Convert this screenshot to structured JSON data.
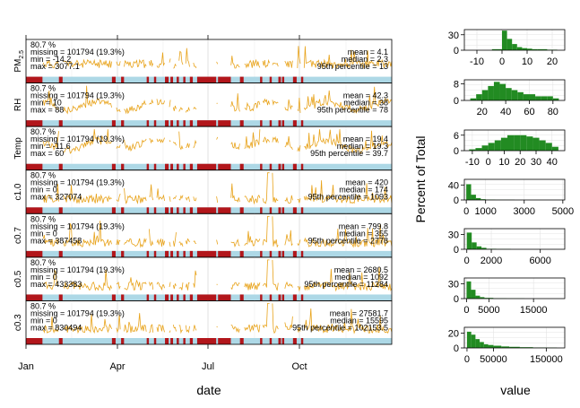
{
  "panels": [
    {
      "label": "PM2.5",
      "label_main": "PM",
      "label_sub": "2.5",
      "pct": "80.7 %",
      "missing": "missing = 101794 (19.3%)",
      "min": "min = -14.2",
      "max": "max = 3077.1",
      "mean": "mean = 4.1",
      "median": "median = 2.3",
      "p95": "95th percentile = 13"
    },
    {
      "label": "RH",
      "label_main": "RH",
      "label_sub": "",
      "pct": "80.7 %",
      "missing": "missing = 101794 (19.3%)",
      "min": "min = 10",
      "max": "max = 88",
      "mean": "mean = 42.3",
      "median": "median = 38",
      "p95": "95th percentile = 78"
    },
    {
      "label": "Temp",
      "label_main": "Temp",
      "label_sub": "",
      "pct": "80.7 %",
      "missing": "missing = 101794 (19.3%)",
      "min": "min = -11.6",
      "max": "max = 60",
      "mean": "mean = 19.4",
      "median": "median = 19.3",
      "p95": "95th percentile = 39.7"
    },
    {
      "label": "c1.0",
      "label_main": "c1.0",
      "label_sub": "",
      "pct": "80.7 %",
      "missing": "missing = 101794 (19.3%)",
      "min": "min = 0",
      "max": "max = 327074",
      "mean": "mean = 420",
      "median": "median = 174",
      "p95": "95th percentile = 1093"
    },
    {
      "label": "c0.7",
      "label_main": "c0.7",
      "label_sub": "",
      "pct": "80.7 %",
      "missing": "missing = 101794 (19.3%)",
      "min": "min = 0",
      "max": "max = 387458",
      "mean": "mean = 799.8",
      "median": "median = 355",
      "p95": "95th percentile = 2778"
    },
    {
      "label": "c0.5",
      "label_main": "c0.5",
      "label_sub": "",
      "pct": "80.7 %",
      "missing": "missing = 101794 (19.3%)",
      "min": "min = 0",
      "max": "max = 433383",
      "mean": "mean = 2680.5",
      "median": "median = 1092",
      "p95": "95th percentile = 11284"
    },
    {
      "label": "c0.3",
      "label_main": "c0.3",
      "label_sub": "",
      "pct": "80.7 %",
      "missing": "missing = 101794 (19.3%)",
      "min": "min = 0",
      "max": "max = 830494",
      "mean": "mean = 27581.7",
      "median": "median = 15595",
      "p95": "95th percentile = 102153.5"
    }
  ],
  "axes": {
    "time_xlabel": "date",
    "time_ticks": [
      "Jan",
      "Apr",
      "Jul",
      "Oct"
    ],
    "hist_xlabel": "value",
    "hist_ylabel": "Percent of Total"
  },
  "colors": {
    "series": "#e8a31b",
    "missing": "#b2161b",
    "present": "#add8e6",
    "hist": "#228b22",
    "pct_text": "#006400"
  },
  "chart_data": [
    {
      "type": "line",
      "title": "",
      "xlabel": "date",
      "x_ticks": [
        "Jan",
        "Apr",
        "Jul",
        "Oct"
      ],
      "series": [
        "PM2.5",
        "RH",
        "Temp",
        "c1.0",
        "c0.7",
        "c0.5",
        "c0.3"
      ],
      "grid": true,
      "missing_intervals_fraction_of_year": [
        [
          0.0,
          0.045
        ],
        [
          0.09,
          0.1
        ],
        [
          0.235,
          0.245
        ],
        [
          0.26,
          0.268
        ],
        [
          0.33,
          0.336
        ],
        [
          0.35,
          0.356
        ],
        [
          0.38,
          0.39
        ],
        [
          0.395,
          0.402
        ],
        [
          0.412,
          0.418
        ],
        [
          0.43,
          0.436
        ],
        [
          0.448,
          0.456
        ],
        [
          0.468,
          0.52
        ],
        [
          0.525,
          0.56
        ],
        [
          0.585,
          0.595
        ],
        [
          0.64,
          0.646
        ],
        [
          0.666,
          0.672
        ],
        [
          0.69,
          0.697
        ],
        [
          0.7,
          0.706
        ],
        [
          0.73,
          0.74
        ],
        [
          0.752,
          0.758
        ]
      ]
    },
    {
      "type": "bar",
      "title": "",
      "xlabel": "value",
      "ylabel": "Percent of Total",
      "histograms": [
        {
          "name": "PM2.5",
          "xlim": [
            -15,
            25
          ],
          "x_ticks": [
            -10,
            0,
            10,
            20
          ],
          "y_ticks": [
            0,
            30
          ],
          "ylim": [
            0,
            40
          ],
          "bins": [
            {
              "x0": -4,
              "x1": 0,
              "v": 2
            },
            {
              "x0": 0,
              "x1": 2,
              "v": 38
            },
            {
              "x0": 2,
              "x1": 4,
              "v": 22
            },
            {
              "x0": 4,
              "x1": 6,
              "v": 12
            },
            {
              "x0": 6,
              "x1": 8,
              "v": 6
            },
            {
              "x0": 8,
              "x1": 10,
              "v": 4
            },
            {
              "x0": 10,
              "x1": 12,
              "v": 3
            },
            {
              "x0": 12,
              "x1": 14,
              "v": 2
            },
            {
              "x0": 14,
              "x1": 18,
              "v": 2
            },
            {
              "x0": 18,
              "x1": 22,
              "v": 1
            }
          ]
        },
        {
          "name": "RH",
          "xlim": [
            5,
            90
          ],
          "x_ticks": [
            20,
            40,
            60,
            80
          ],
          "y_ticks": [
            0,
            8
          ],
          "ylim": [
            0,
            10
          ],
          "bins": [
            {
              "x0": 10,
              "x1": 15,
              "v": 1
            },
            {
              "x0": 15,
              "x1": 20,
              "v": 3
            },
            {
              "x0": 20,
              "x1": 25,
              "v": 5
            },
            {
              "x0": 25,
              "x1": 30,
              "v": 7
            },
            {
              "x0": 30,
              "x1": 35,
              "v": 9
            },
            {
              "x0": 35,
              "x1": 40,
              "v": 8
            },
            {
              "x0": 40,
              "x1": 45,
              "v": 6
            },
            {
              "x0": 45,
              "x1": 50,
              "v": 5
            },
            {
              "x0": 50,
              "x1": 55,
              "v": 4
            },
            {
              "x0": 55,
              "x1": 60,
              "v": 3
            },
            {
              "x0": 60,
              "x1": 65,
              "v": 3
            },
            {
              "x0": 65,
              "x1": 70,
              "v": 2
            },
            {
              "x0": 70,
              "x1": 75,
              "v": 2
            },
            {
              "x0": 75,
              "x1": 80,
              "v": 2
            },
            {
              "x0": 80,
              "x1": 85,
              "v": 1
            }
          ]
        },
        {
          "name": "Temp",
          "xlim": [
            -15,
            48
          ],
          "x_ticks": [
            -10,
            0,
            10,
            20,
            30,
            40
          ],
          "y_ticks": [
            0,
            6
          ],
          "ylim": [
            0,
            8
          ],
          "bins": [
            {
              "x0": -12,
              "x1": -8,
              "v": 0.5
            },
            {
              "x0": -8,
              "x1": -4,
              "v": 1
            },
            {
              "x0": -4,
              "x1": 0,
              "v": 2
            },
            {
              "x0": 0,
              "x1": 4,
              "v": 3
            },
            {
              "x0": 4,
              "x1": 8,
              "v": 4
            },
            {
              "x0": 8,
              "x1": 12,
              "v": 5
            },
            {
              "x0": 12,
              "x1": 16,
              "v": 6
            },
            {
              "x0": 16,
              "x1": 20,
              "v": 6
            },
            {
              "x0": 20,
              "x1": 24,
              "v": 6
            },
            {
              "x0": 24,
              "x1": 28,
              "v": 5.5
            },
            {
              "x0": 28,
              "x1": 32,
              "v": 5
            },
            {
              "x0": 32,
              "x1": 36,
              "v": 4
            },
            {
              "x0": 36,
              "x1": 40,
              "v": 3
            },
            {
              "x0": 40,
              "x1": 44,
              "v": 1.5
            }
          ]
        },
        {
          "name": "c1.0",
          "xlim": [
            -100,
            5100
          ],
          "x_ticks": [
            0,
            1000,
            3000,
            5000
          ],
          "tick_labels": [
            "0",
            "1000",
            "3000",
            "5000"
          ],
          "y_ticks": [
            0,
            40
          ],
          "ylim": [
            0,
            55
          ],
          "bins": [
            {
              "x0": 0,
              "x1": 250,
              "v": 42
            },
            {
              "x0": 250,
              "x1": 500,
              "v": 14
            },
            {
              "x0": 500,
              "x1": 750,
              "v": 5
            },
            {
              "x0": 750,
              "x1": 1000,
              "v": 2
            },
            {
              "x0": 1000,
              "x1": 1500,
              "v": 1
            },
            {
              "x0": 1500,
              "x1": 2500,
              "v": 0.5
            }
          ]
        },
        {
          "name": "c0.7",
          "xlim": [
            -200,
            8000
          ],
          "x_ticks": [
            0,
            2000,
            6000
          ],
          "tick_labels": [
            "0",
            "2000",
            "6000"
          ],
          "y_ticks": [
            0,
            30
          ],
          "ylim": [
            0,
            42
          ],
          "bins": [
            {
              "x0": 0,
              "x1": 400,
              "v": 34
            },
            {
              "x0": 400,
              "x1": 800,
              "v": 14
            },
            {
              "x0": 800,
              "x1": 1200,
              "v": 6
            },
            {
              "x0": 1200,
              "x1": 1600,
              "v": 3
            },
            {
              "x0": 1600,
              "x1": 2400,
              "v": 1
            },
            {
              "x0": 2400,
              "x1": 3600,
              "v": 0.5
            }
          ]
        },
        {
          "name": "c0.5",
          "xlim": [
            -500,
            22000
          ],
          "x_ticks": [
            0,
            5000,
            15000
          ],
          "tick_labels": [
            "0",
            "5000",
            "15000"
          ],
          "y_ticks": [
            0,
            30
          ],
          "ylim": [
            0,
            42
          ],
          "bins": [
            {
              "x0": 0,
              "x1": 1000,
              "v": 35
            },
            {
              "x0": 1000,
              "x1": 2000,
              "v": 18
            },
            {
              "x0": 2000,
              "x1": 3000,
              "v": 6
            },
            {
              "x0": 3000,
              "x1": 4000,
              "v": 3
            },
            {
              "x0": 4000,
              "x1": 6000,
              "v": 1.5
            },
            {
              "x0": 6000,
              "x1": 9000,
              "v": 0.7
            },
            {
              "x0": 9000,
              "x1": 13000,
              "v": 0.4
            }
          ]
        },
        {
          "name": "c0.3",
          "xlim": [
            -5000,
            185000
          ],
          "x_ticks": [
            0,
            50000,
            150000
          ],
          "tick_labels": [
            "0",
            "50000",
            "150000"
          ],
          "y_ticks": [
            0,
            20
          ],
          "ylim": [
            0,
            28
          ],
          "bins": [
            {
              "x0": 0,
              "x1": 8000,
              "v": 22
            },
            {
              "x0": 8000,
              "x1": 16000,
              "v": 18
            },
            {
              "x0": 16000,
              "x1": 24000,
              "v": 12
            },
            {
              "x0": 24000,
              "x1": 32000,
              "v": 8
            },
            {
              "x0": 32000,
              "x1": 40000,
              "v": 5
            },
            {
              "x0": 40000,
              "x1": 50000,
              "v": 4
            },
            {
              "x0": 50000,
              "x1": 65000,
              "v": 3
            },
            {
              "x0": 65000,
              "x1": 80000,
              "v": 2
            },
            {
              "x0": 80000,
              "x1": 100000,
              "v": 1.5
            },
            {
              "x0": 100000,
              "x1": 125000,
              "v": 1
            },
            {
              "x0": 125000,
              "x1": 150000,
              "v": 0.6
            },
            {
              "x0": 150000,
              "x1": 170000,
              "v": 0.4
            }
          ]
        }
      ]
    }
  ]
}
